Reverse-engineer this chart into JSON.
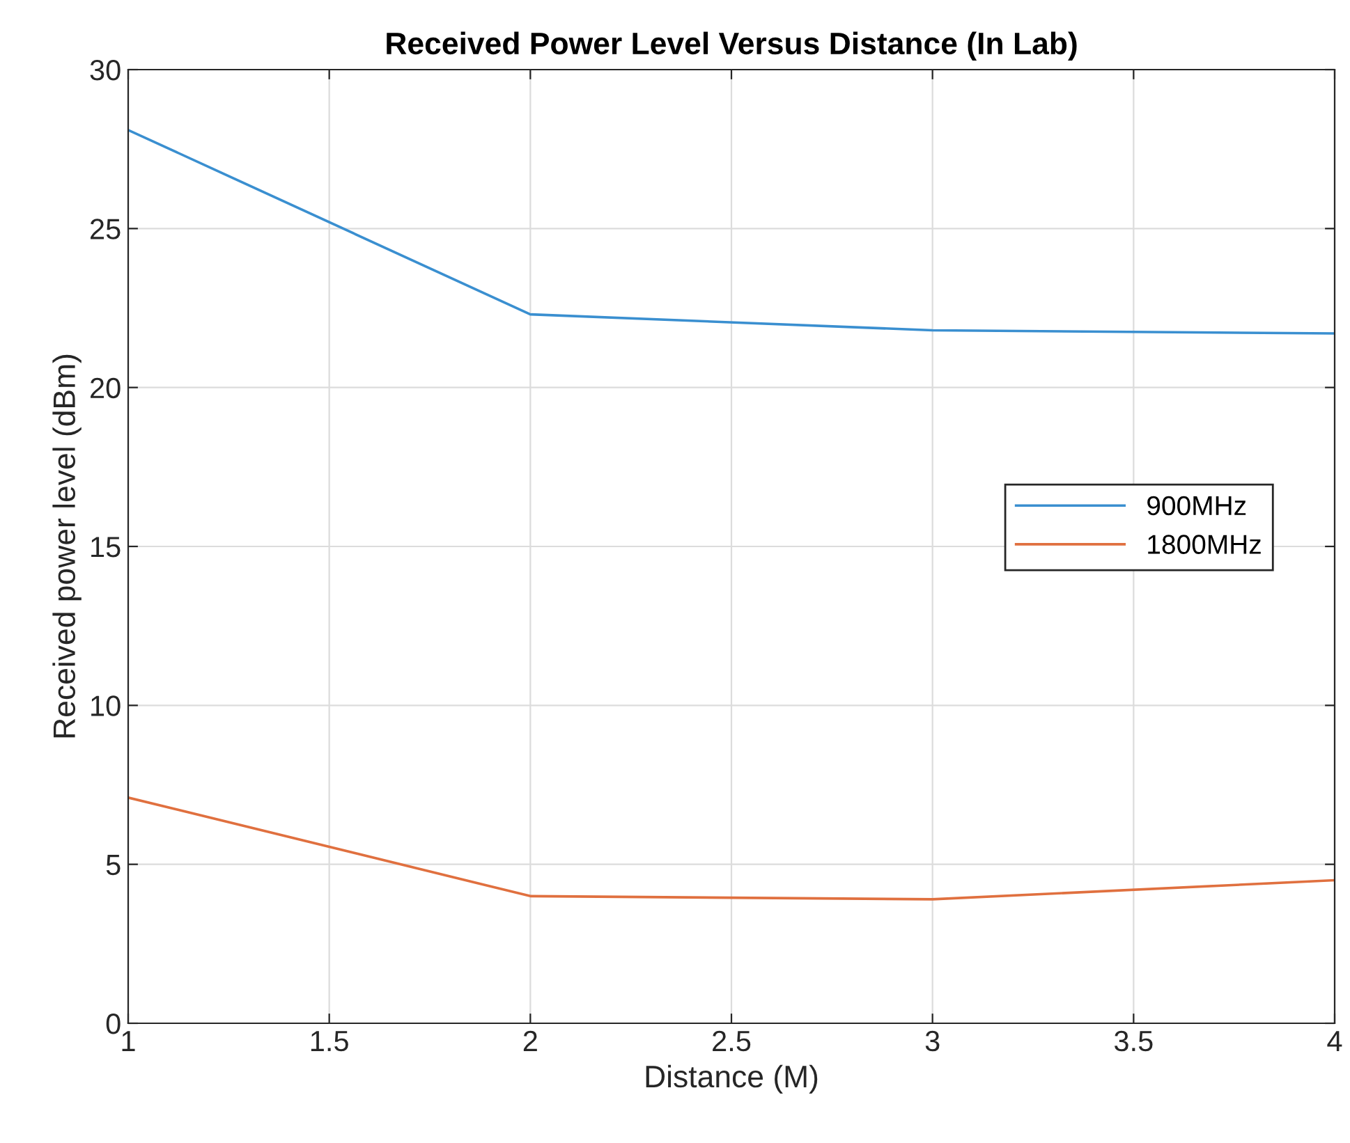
{
  "chart_data": {
    "type": "line",
    "title": "Received Power Level Versus Distance (In Lab)",
    "xlabel": "Distance (M)",
    "ylabel": "Received power level (dBm)",
    "x": [
      1,
      2,
      3,
      4
    ],
    "series": [
      {
        "name": "900MHz",
        "color": "#3a8fd0",
        "values": [
          28.1,
          22.3,
          21.8,
          21.7
        ]
      },
      {
        "name": "1800MHz",
        "color": "#e0703f",
        "values": [
          7.1,
          4.0,
          3.9,
          4.5
        ]
      }
    ],
    "xlim": [
      1,
      4
    ],
    "xticks": [
      1,
      1.5,
      2,
      2.5,
      3,
      3.5,
      4
    ],
    "ylim": [
      0,
      30
    ],
    "yticks": [
      0,
      5,
      10,
      15,
      20,
      25,
      30
    ],
    "grid": true,
    "legend": "right",
    "marker": "none",
    "line_style": "solid"
  }
}
